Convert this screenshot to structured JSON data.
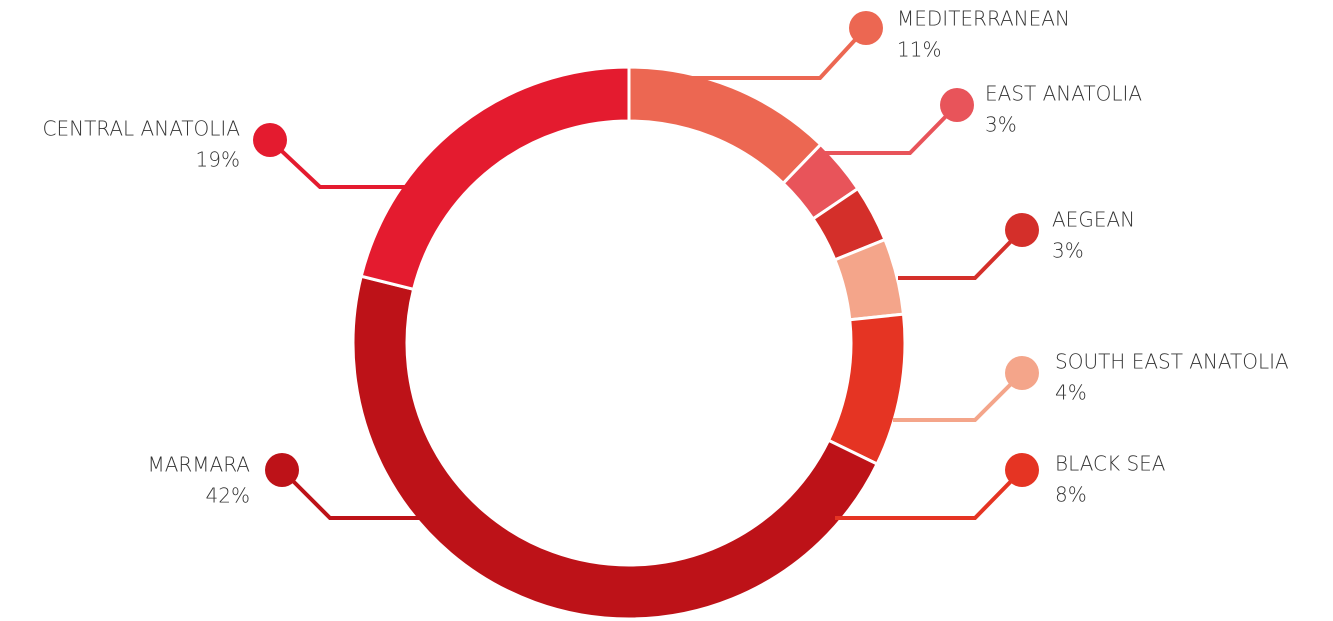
{
  "chart_data": {
    "type": "donut",
    "categories": [
      "MEDITERRANEAN",
      "EAST ANATOLIA",
      "AEGEAN",
      "SOUTH EAST ANATOLIA",
      "BLACK SEA",
      "MARMARA",
      "CENTRAL ANATOLIA"
    ],
    "values": [
      11,
      3,
      3,
      4,
      8,
      42,
      19
    ],
    "value_labels": [
      "11%",
      "3%",
      "3%",
      "4%",
      "8%",
      "42%",
      "19%"
    ],
    "colors": [
      "#ec6752",
      "#e8545a",
      "#d42f2a",
      "#f4a58a",
      "#e53423",
      "#bd1218",
      "#e41b2f"
    ]
  }
}
